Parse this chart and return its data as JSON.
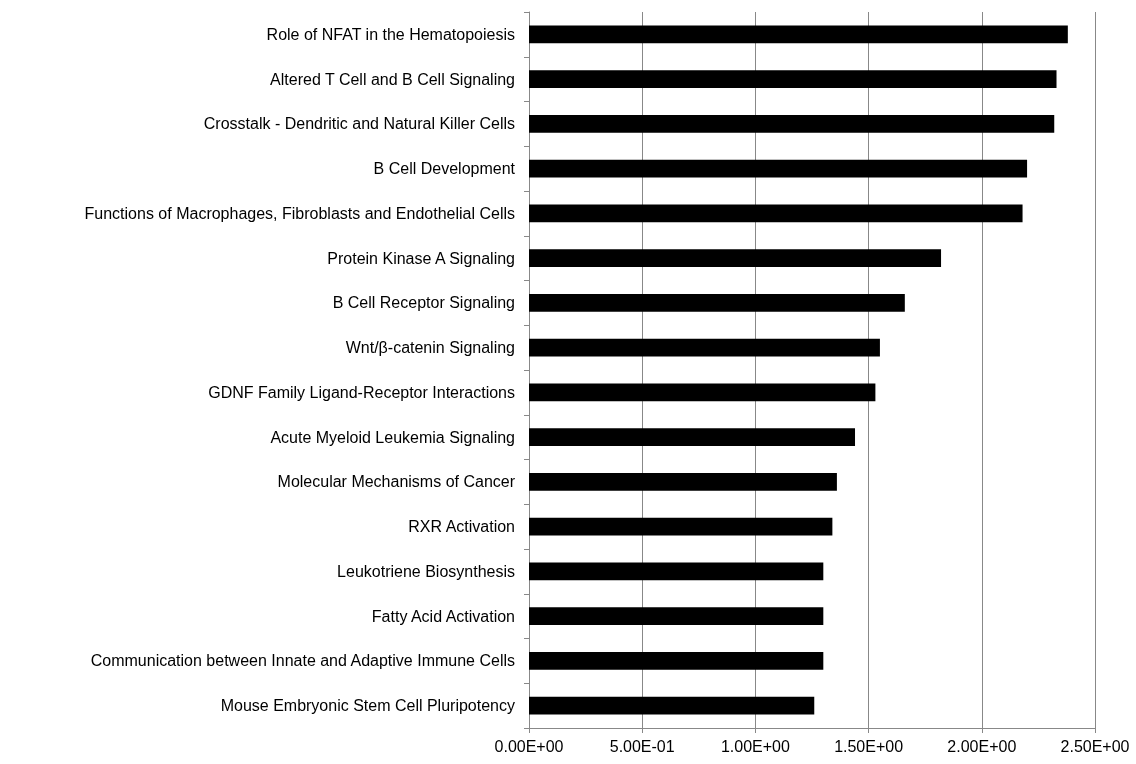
{
  "chart_data": {
    "type": "bar",
    "orientation": "horizontal",
    "categories": [
      "Role of NFAT in the Hematopoiesis",
      "Altered T Cell and B Cell Signaling",
      "Crosstalk - Dendritic and Natural Killer Cells",
      "B Cell Development",
      "Functions of Macrophages, Fibroblasts and Endothelial Cells",
      "Protein Kinase A Signaling",
      "B Cell Receptor Signaling",
      "Wnt/β-catenin Signaling",
      "GDNF Family Ligand-Receptor Interactions",
      "Acute Myeloid Leukemia Signaling",
      "Molecular Mechanisms of Cancer",
      "RXR Activation",
      "Leukotriene Biosynthesis",
      "Fatty Acid Activation",
      "Communication between Innate and Adaptive Immune Cells",
      "Mouse Embryonic Stem Cell Pluripotency"
    ],
    "values": [
      2.38,
      2.33,
      2.32,
      2.2,
      2.18,
      1.82,
      1.66,
      1.55,
      1.53,
      1.44,
      1.36,
      1.34,
      1.3,
      1.3,
      1.3,
      1.26
    ],
    "color": "#000000",
    "xlim": [
      0,
      2.5
    ],
    "xticks": [
      {
        "value": 0,
        "label": "0.00E+00"
      },
      {
        "value": 0.5,
        "label": "5.00E-01"
      },
      {
        "value": 1,
        "label": "1.00E+00"
      },
      {
        "value": 1.5,
        "label": "1.50E+00"
      },
      {
        "value": 2,
        "label": "2.00E+00"
      },
      {
        "value": 2.5,
        "label": "2.50E+00"
      }
    ],
    "grid": "x"
  }
}
